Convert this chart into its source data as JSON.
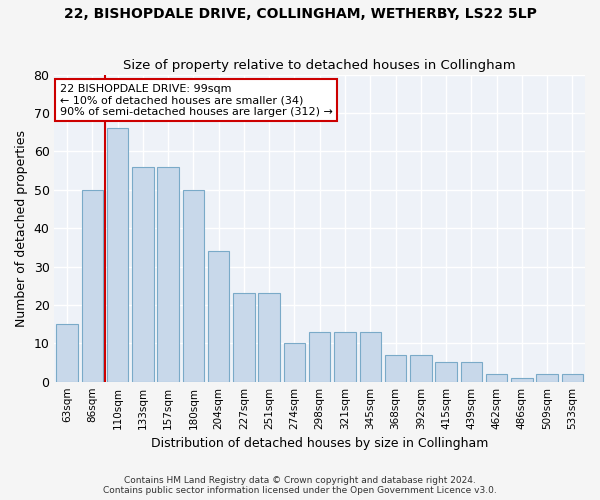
{
  "title": "22, BISHOPDALE DRIVE, COLLINGHAM, WETHERBY, LS22 5LP",
  "subtitle": "Size of property relative to detached houses in Collingham",
  "xlabel": "Distribution of detached houses by size in Collingham",
  "ylabel": "Number of detached properties",
  "bar_color": "#c8d8ea",
  "bar_edge_color": "#7aaac8",
  "bg_color": "#eef2f8",
  "grid_color": "#ffffff",
  "vline_color": "#cc0000",
  "categories": [
    "63sqm",
    "86sqm",
    "110sqm",
    "133sqm",
    "157sqm",
    "180sqm",
    "204sqm",
    "227sqm",
    "251sqm",
    "274sqm",
    "298sqm",
    "321sqm",
    "345sqm",
    "368sqm",
    "392sqm",
    "415sqm",
    "439sqm",
    "462sqm",
    "486sqm",
    "509sqm",
    "533sqm"
  ],
  "values": [
    15,
    50,
    66,
    56,
    56,
    50,
    34,
    23,
    23,
    10,
    13,
    13,
    13,
    7,
    7,
    5,
    5,
    2,
    1,
    2,
    2
  ],
  "vline_position": 1.5,
  "annotation_text": "22 BISHOPDALE DRIVE: 99sqm\n← 10% of detached houses are smaller (34)\n90% of semi-detached houses are larger (312) →",
  "annotation_box_color": "#ffffff",
  "annotation_box_edge": "#cc0000",
  "footer_line1": "Contains HM Land Registry data © Crown copyright and database right 2024.",
  "footer_line2": "Contains public sector information licensed under the Open Government Licence v3.0.",
  "ylim": [
    0,
    80
  ],
  "yticks": [
    0,
    10,
    20,
    30,
    40,
    50,
    60,
    70,
    80
  ]
}
